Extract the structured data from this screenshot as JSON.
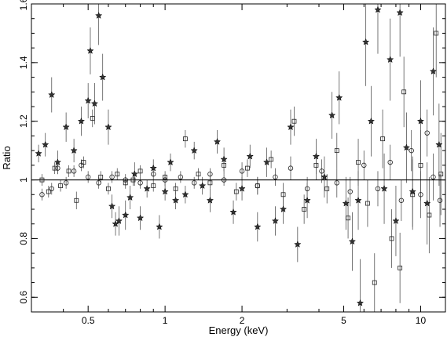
{
  "chart_data": {
    "type": "scatter",
    "title": "",
    "xlabel": "Energy (keV)",
    "ylabel": "Ratio",
    "xscale": "log",
    "xlim": [
      0.3,
      12.5
    ],
    "ylim": [
      0.55,
      1.6
    ],
    "reference_line": 1.0,
    "x_ticks": [
      {
        "value": 0.5,
        "label": "0.5"
      },
      {
        "value": 1,
        "label": "1"
      },
      {
        "value": 2,
        "label": "2"
      },
      {
        "value": 5,
        "label": "5"
      },
      {
        "value": 10,
        "label": "10"
      }
    ],
    "y_ticks": [
      {
        "value": 0.6,
        "label": "0.6"
      },
      {
        "value": 0.8,
        "label": "0.8"
      },
      {
        "value": 1.0,
        "label": "1"
      },
      {
        "value": 1.2,
        "label": "1.2"
      },
      {
        "value": 1.4,
        "label": "1.4"
      },
      {
        "value": 1.6,
        "label": "1.6"
      }
    ],
    "grid": false,
    "legend": "none",
    "series": [
      {
        "marker": "star",
        "points": [
          [
            0.32,
            1.09,
            0.03
          ],
          [
            0.34,
            1.12,
            0.04
          ],
          [
            0.36,
            1.29,
            0.06
          ],
          [
            0.38,
            1.06,
            0.04
          ],
          [
            0.41,
            1.18,
            0.05
          ],
          [
            0.44,
            1.1,
            0.04
          ],
          [
            0.47,
            1.2,
            0.05
          ],
          [
            0.5,
            1.27,
            0.06
          ],
          [
            0.51,
            1.44,
            0.08
          ],
          [
            0.53,
            1.26,
            0.07
          ],
          [
            0.55,
            1.56,
            0.1
          ],
          [
            0.57,
            1.35,
            0.08
          ],
          [
            0.6,
            1.18,
            0.06
          ],
          [
            0.62,
            0.91,
            0.04
          ],
          [
            0.64,
            0.85,
            0.04
          ],
          [
            0.66,
            0.86,
            0.05
          ],
          [
            0.7,
            0.88,
            0.05
          ],
          [
            0.73,
            0.94,
            0.04
          ],
          [
            0.76,
            1.02,
            0.04
          ],
          [
            0.8,
            0.87,
            0.04
          ],
          [
            0.85,
            0.97,
            0.03
          ],
          [
            0.9,
            1.04,
            0.03
          ],
          [
            0.95,
            0.84,
            0.04
          ],
          [
            1.0,
            0.96,
            0.03
          ],
          [
            1.05,
            1.06,
            0.03
          ],
          [
            1.1,
            0.93,
            0.03
          ],
          [
            1.2,
            0.95,
            0.03
          ],
          [
            1.3,
            1.1,
            0.03
          ],
          [
            1.4,
            0.98,
            0.03
          ],
          [
            1.5,
            0.93,
            0.04
          ],
          [
            1.6,
            1.13,
            0.04
          ],
          [
            1.7,
            1.07,
            0.04
          ],
          [
            1.85,
            0.89,
            0.04
          ],
          [
            2.0,
            0.97,
            0.04
          ],
          [
            2.15,
            1.08,
            0.04
          ],
          [
            2.3,
            0.84,
            0.05
          ],
          [
            2.5,
            1.06,
            0.05
          ],
          [
            2.7,
            0.86,
            0.05
          ],
          [
            2.9,
            0.9,
            0.05
          ],
          [
            3.1,
            1.18,
            0.06
          ],
          [
            3.3,
            0.78,
            0.06
          ],
          [
            3.6,
            0.93,
            0.06
          ],
          [
            3.9,
            1.08,
            0.06
          ],
          [
            4.2,
            1.01,
            0.07
          ],
          [
            4.5,
            1.22,
            0.08
          ],
          [
            4.8,
            1.28,
            0.09
          ],
          [
            5.1,
            0.92,
            0.09
          ],
          [
            5.4,
            0.79,
            0.1
          ],
          [
            5.7,
            0.93,
            0.1
          ],
          [
            5.8,
            0.58,
            0.15
          ],
          [
            6.1,
            1.47,
            0.15
          ],
          [
            6.4,
            1.2,
            0.12
          ],
          [
            6.8,
            1.58,
            0.15
          ],
          [
            7.2,
            0.97,
            0.12
          ],
          [
            7.6,
            1.41,
            0.14
          ],
          [
            8.0,
            0.86,
            0.12
          ],
          [
            8.3,
            1.57,
            0.15
          ],
          [
            8.8,
            1.11,
            0.12
          ],
          [
            9.3,
            0.96,
            0.12
          ],
          [
            10.0,
            1.2,
            0.14
          ],
          [
            10.6,
            0.92,
            0.14
          ],
          [
            11.2,
            1.37,
            0.15
          ],
          [
            11.8,
            1.12,
            0.14
          ]
        ]
      },
      {
        "marker": "square",
        "points": [
          [
            0.33,
            1.0,
            0.02
          ],
          [
            0.35,
            0.96,
            0.02
          ],
          [
            0.37,
            1.04,
            0.02
          ],
          [
            0.39,
            0.98,
            0.02
          ],
          [
            0.42,
            1.03,
            0.02
          ],
          [
            0.45,
            0.93,
            0.03
          ],
          [
            0.48,
            1.06,
            0.02
          ],
          [
            0.52,
            1.21,
            0.03
          ],
          [
            0.56,
            1.01,
            0.02
          ],
          [
            0.6,
            0.97,
            0.02
          ],
          [
            0.65,
            1.02,
            0.02
          ],
          [
            0.7,
            0.99,
            0.02
          ],
          [
            0.75,
            1.0,
            0.02
          ],
          [
            0.8,
            1.03,
            0.02
          ],
          [
            0.9,
            0.98,
            0.02
          ],
          [
            1.0,
            1.01,
            0.02
          ],
          [
            1.1,
            0.97,
            0.02
          ],
          [
            1.2,
            1.14,
            0.03
          ],
          [
            1.35,
            1.02,
            0.02
          ],
          [
            1.5,
            0.99,
            0.02
          ],
          [
            1.7,
            1.05,
            0.03
          ],
          [
            1.9,
            0.96,
            0.03
          ],
          [
            2.1,
            1.04,
            0.03
          ],
          [
            2.3,
            0.98,
            0.03
          ],
          [
            2.6,
            1.07,
            0.03
          ],
          [
            2.9,
            0.95,
            0.04
          ],
          [
            3.2,
            1.2,
            0.05
          ],
          [
            3.5,
            0.9,
            0.05
          ],
          [
            3.9,
            1.05,
            0.05
          ],
          [
            4.3,
            0.97,
            0.05
          ],
          [
            4.7,
            1.1,
            0.06
          ],
          [
            5.2,
            0.87,
            0.07
          ],
          [
            5.7,
            1.06,
            0.08
          ],
          [
            6.2,
            0.92,
            0.08
          ],
          [
            6.6,
            0.65,
            0.1
          ],
          [
            7.1,
            1.14,
            0.1
          ],
          [
            7.7,
            0.8,
            0.1
          ],
          [
            8.3,
            0.7,
            0.12
          ],
          [
            8.6,
            1.3,
            0.12
          ],
          [
            9.3,
            0.95,
            0.12
          ],
          [
            10.0,
            1.05,
            0.12
          ],
          [
            10.8,
            0.88,
            0.13
          ],
          [
            11.5,
            1.5,
            0.15
          ],
          [
            12.0,
            1.02,
            0.14
          ]
        ]
      },
      {
        "marker": "circle",
        "points": [
          [
            0.33,
            0.95,
            0.02
          ],
          [
            0.36,
            0.97,
            0.02
          ],
          [
            0.38,
            1.04,
            0.02
          ],
          [
            0.41,
            0.99,
            0.02
          ],
          [
            0.44,
            1.03,
            0.02
          ],
          [
            0.47,
            1.05,
            0.02
          ],
          [
            0.5,
            1.01,
            0.02
          ],
          [
            0.55,
            0.99,
            0.02
          ],
          [
            0.62,
            1.01,
            0.02
          ],
          [
            0.7,
            1.0,
            0.02
          ],
          [
            0.8,
            0.99,
            0.02
          ],
          [
            0.9,
            1.02,
            0.02
          ],
          [
            1.0,
            1.0,
            0.02
          ],
          [
            1.15,
            1.01,
            0.02
          ],
          [
            1.3,
            0.99,
            0.02
          ],
          [
            1.5,
            1.02,
            0.02
          ],
          [
            1.7,
            1.0,
            0.02
          ],
          [
            2.0,
            1.03,
            0.03
          ],
          [
            2.3,
            0.98,
            0.03
          ],
          [
            2.7,
            1.01,
            0.03
          ],
          [
            3.1,
            1.04,
            0.04
          ],
          [
            3.6,
            0.97,
            0.04
          ],
          [
            4.1,
            1.03,
            0.04
          ],
          [
            4.7,
            0.99,
            0.05
          ],
          [
            5.3,
            0.96,
            0.05
          ],
          [
            6.0,
            1.05,
            0.05
          ],
          [
            6.8,
            0.97,
            0.06
          ],
          [
            7.6,
            1.06,
            0.06
          ],
          [
            8.4,
            0.93,
            0.07
          ],
          [
            9.2,
            1.1,
            0.07
          ],
          [
            10.0,
            0.95,
            0.08
          ],
          [
            10.6,
            1.16,
            0.08
          ],
          [
            11.2,
            1.01,
            0.08
          ],
          [
            11.9,
            0.93,
            0.09
          ]
        ]
      }
    ]
  }
}
